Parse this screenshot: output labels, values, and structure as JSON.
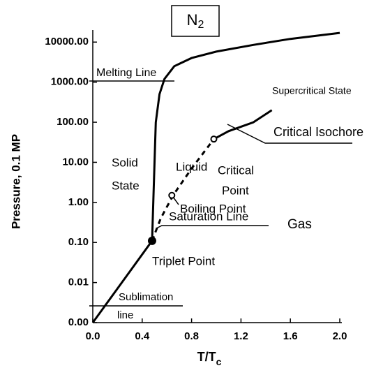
{
  "chart_data": {
    "type": "line",
    "title": {
      "main": "N",
      "sub": "2"
    },
    "xlabel": {
      "main": "T/T",
      "sub": "c"
    },
    "ylabel": "Pressure,  0.1 MP",
    "log_y": true,
    "xlim": [
      0,
      2.0
    ],
    "ylim": [
      0.001,
      20000
    ],
    "xticks": [
      {
        "value": 0,
        "label": "0.0"
      },
      0.4,
      0.8,
      1.2,
      1.6,
      {
        "value": 2,
        "label": "2.0"
      }
    ],
    "yticks": [
      {
        "value": 0.001,
        "label": "0.00"
      },
      {
        "value": 0.01,
        "label": "0.01"
      },
      {
        "value": 0.1,
        "label": "0.10"
      },
      {
        "value": 1,
        "label": "1.00"
      },
      {
        "value": 10,
        "label": "10.00"
      },
      {
        "value": 100,
        "label": "100.00"
      },
      {
        "value": 1000,
        "label": "1000.00"
      },
      {
        "value": 10000,
        "label": "10000.00"
      }
    ],
    "color": "#000000",
    "series": [
      {
        "x": [
          0,
          0.48
        ],
        "values": [
          0.001,
          0.11
        ],
        "dashed": false
      },
      {
        "x": [
          0.48,
          0.49,
          0.5,
          0.51,
          0.54,
          0.58,
          0.66,
          0.8,
          1.0,
          1.3,
          1.6,
          2.0
        ],
        "values": [
          0.11,
          1,
          10,
          100,
          500,
          1200,
          2500,
          4000,
          5800,
          8500,
          12000,
          17000
        ],
        "dashed": false
      },
      {
        "x": [
          0.48,
          0.55,
          0.65,
          0.8,
          0.98
        ],
        "values": [
          0.11,
          0.4,
          1.5,
          7,
          38
        ],
        "dashed": true
      },
      {
        "x": [
          0.98,
          1.1,
          1.3,
          1.45
        ],
        "values": [
          38,
          60,
          100,
          200
        ],
        "dashed": false
      }
    ],
    "points": [
      {
        "x": 0.48,
        "y": 0.11,
        "filled": true
      },
      {
        "x": 0.64,
        "y": 1.5,
        "filled": false
      },
      {
        "x": 0.98,
        "y": 38,
        "filled": false
      }
    ],
    "annotations": [
      "Melting Line",
      "Supercritical State",
      "Liquid",
      "Critical Isochore",
      "Solid",
      "State",
      "Critical",
      "Point",
      "Boiling Point",
      "Saturation Line",
      "Gas",
      "Triplet Point",
      "Sublimation",
      "line"
    ]
  }
}
